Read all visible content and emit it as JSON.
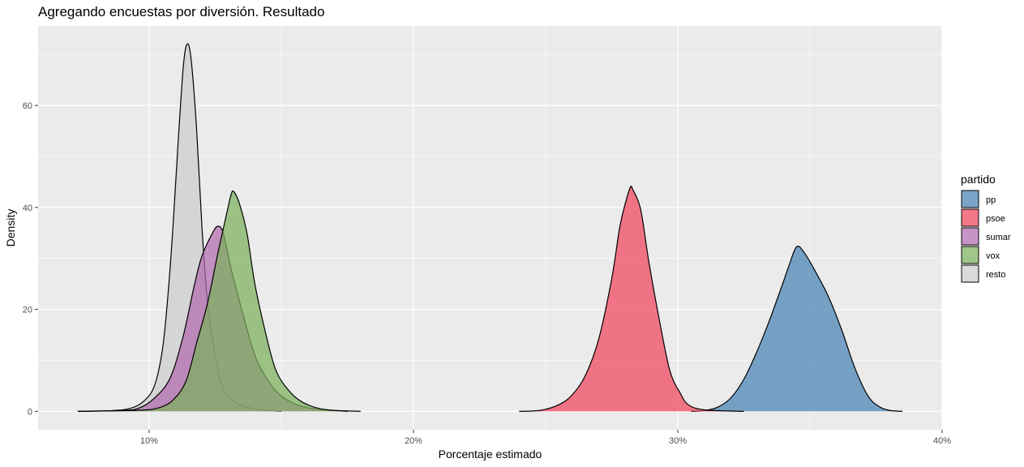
{
  "chart_data": {
    "type": "area",
    "title": "Agregando encuestas por diversión. Resultado",
    "xlabel": "Porcentaje estimado",
    "ylabel": "Density",
    "xlim": [
      5.8,
      40.0
    ],
    "ylim": [
      -3.6,
      75.6
    ],
    "x_ticks": [
      10,
      20,
      30,
      40
    ],
    "x_tick_labels": [
      "10%",
      "20%",
      "30%",
      "40%"
    ],
    "y_ticks": [
      0,
      20,
      40,
      60
    ],
    "y_tick_labels": [
      "0",
      "20",
      "40",
      "60"
    ],
    "grid": true,
    "legend_title": "partido",
    "legend_position": "right",
    "series": [
      {
        "name": "pp",
        "color": "#4682B4",
        "points": [
          [
            30.5,
            0
          ],
          [
            31.0,
            0.15
          ],
          [
            31.5,
            0.8
          ],
          [
            32.0,
            2.6
          ],
          [
            32.5,
            6.3
          ],
          [
            33.0,
            11.8
          ],
          [
            33.5,
            18.3
          ],
          [
            34.0,
            25.5
          ],
          [
            34.2,
            28.5
          ],
          [
            34.5,
            32.3
          ],
          [
            34.8,
            31.0
          ],
          [
            35.2,
            27.5
          ],
          [
            35.7,
            22.5
          ],
          [
            36.2,
            16.0
          ],
          [
            36.7,
            8.5
          ],
          [
            37.2,
            3.0
          ],
          [
            37.6,
            1.0
          ],
          [
            38.0,
            0.2
          ],
          [
            38.5,
            0
          ]
        ]
      },
      {
        "name": "psoe",
        "color": "#F0445C",
        "points": [
          [
            24.0,
            0
          ],
          [
            24.8,
            0.2
          ],
          [
            25.5,
            1.3
          ],
          [
            26.0,
            3.2
          ],
          [
            26.5,
            7.0
          ],
          [
            27.0,
            14.0
          ],
          [
            27.5,
            26.0
          ],
          [
            27.8,
            36.0
          ],
          [
            28.0,
            40.5
          ],
          [
            28.2,
            43.9
          ],
          [
            28.3,
            43.5
          ],
          [
            28.6,
            39.5
          ],
          [
            28.9,
            29.5
          ],
          [
            29.3,
            18.0
          ],
          [
            29.7,
            8.0
          ],
          [
            30.1,
            3.5
          ],
          [
            30.4,
            1.3
          ],
          [
            31.0,
            0.3
          ],
          [
            32.5,
            0
          ]
        ]
      },
      {
        "name": "sumar",
        "color": "#B36BAE",
        "points": [
          [
            7.3,
            0
          ],
          [
            9.0,
            0.2
          ],
          [
            9.6,
            0.6
          ],
          [
            10.2,
            2.6
          ],
          [
            10.8,
            6.6
          ],
          [
            11.3,
            15.0
          ],
          [
            11.7,
            24.5
          ],
          [
            12.0,
            30.5
          ],
          [
            12.4,
            35.0
          ],
          [
            12.6,
            36.3
          ],
          [
            12.8,
            35.0
          ],
          [
            13.1,
            28.0
          ],
          [
            13.5,
            20.0
          ],
          [
            14.0,
            11.0
          ],
          [
            14.5,
            6.0
          ],
          [
            15.0,
            3.0
          ],
          [
            15.5,
            1.5
          ],
          [
            16.0,
            0.7
          ],
          [
            16.6,
            0.3
          ],
          [
            17.5,
            0
          ]
        ]
      },
      {
        "name": "vox",
        "color": "#7CAF5C",
        "points": [
          [
            7.3,
            0
          ],
          [
            9.5,
            0.2
          ],
          [
            10.3,
            0.6
          ],
          [
            10.9,
            2.2
          ],
          [
            11.4,
            6.0
          ],
          [
            11.8,
            13.5
          ],
          [
            12.2,
            21.0
          ],
          [
            12.6,
            31.0
          ],
          [
            12.9,
            38.0
          ],
          [
            13.1,
            42.5
          ],
          [
            13.2,
            43.1
          ],
          [
            13.4,
            41.0
          ],
          [
            13.7,
            35.0
          ],
          [
            14.0,
            25.0
          ],
          [
            14.4,
            15.5
          ],
          [
            14.8,
            8.0
          ],
          [
            15.3,
            4.0
          ],
          [
            15.8,
            1.8
          ],
          [
            16.4,
            0.6
          ],
          [
            17.0,
            0.2
          ],
          [
            18.0,
            0
          ]
        ]
      },
      {
        "name": "resto",
        "color": "#CCCCCC",
        "points": [
          [
            7.3,
            0
          ],
          [
            8.6,
            0.15
          ],
          [
            9.3,
            0.6
          ],
          [
            9.8,
            2.0
          ],
          [
            10.2,
            5.0
          ],
          [
            10.5,
            12.0
          ],
          [
            10.7,
            22.0
          ],
          [
            10.9,
            36.0
          ],
          [
            11.1,
            53.0
          ],
          [
            11.3,
            68.0
          ],
          [
            11.45,
            72.1
          ],
          [
            11.6,
            68.5
          ],
          [
            11.8,
            55.0
          ],
          [
            12.0,
            36.0
          ],
          [
            12.2,
            22.0
          ],
          [
            12.5,
            11.0
          ],
          [
            12.8,
            4.5
          ],
          [
            13.2,
            2.0
          ],
          [
            13.6,
            1.0
          ],
          [
            14.2,
            0.3
          ],
          [
            15.0,
            0
          ]
        ]
      }
    ]
  },
  "series_order": [
    "pp",
    "psoe",
    "sumar",
    "vox",
    "resto"
  ],
  "draw_order": [
    "pp",
    "psoe",
    "resto",
    "sumar",
    "vox"
  ]
}
